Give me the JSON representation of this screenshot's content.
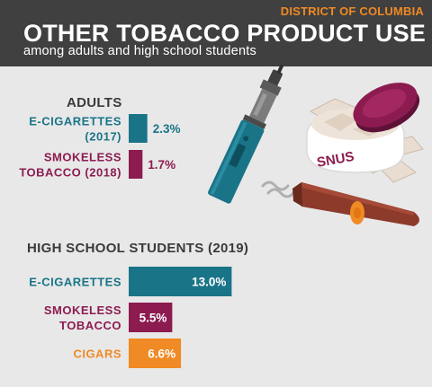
{
  "header": {
    "region": "DISTRICT OF COLUMBIA",
    "title": "OTHER TOBACCO PRODUCT USE",
    "subtitle": "among adults and high school students"
  },
  "illustration": {
    "snus_label": "SNUS",
    "items": [
      "e-cigarette-icon",
      "snus-tin-icon",
      "cigar-icon",
      "smoke-icon"
    ]
  },
  "colors": {
    "teal": "#1a7488",
    "maroon": "#8c1b50",
    "orange": "#f08a24",
    "header_bg": "#404040",
    "background": "#e8e8e8"
  },
  "chart_data": [
    {
      "type": "bar",
      "orientation": "horizontal",
      "title": "ADULTS",
      "categories": [
        [
          "E-CIGARETTES",
          "(2017)"
        ],
        [
          "SMOKELESS",
          "TOBACCO (2018)"
        ]
      ],
      "values": [
        2.3,
        1.7
      ],
      "labels": [
        "2.3%",
        "1.7%"
      ],
      "colors": [
        "#1a7488",
        "#8c1b50"
      ]
    },
    {
      "type": "bar",
      "orientation": "horizontal",
      "title": "HIGH SCHOOL STUDENTS (2019)",
      "categories": [
        [
          "E-CIGARETTES"
        ],
        [
          "SMOKELESS",
          "TOBACCO"
        ],
        [
          "CIGARS"
        ]
      ],
      "values": [
        13.0,
        5.5,
        6.6
      ],
      "labels": [
        "13.0%",
        "5.5%",
        "6.6%"
      ],
      "colors": [
        "#1a7488",
        "#8c1b50",
        "#f08a24"
      ]
    }
  ]
}
